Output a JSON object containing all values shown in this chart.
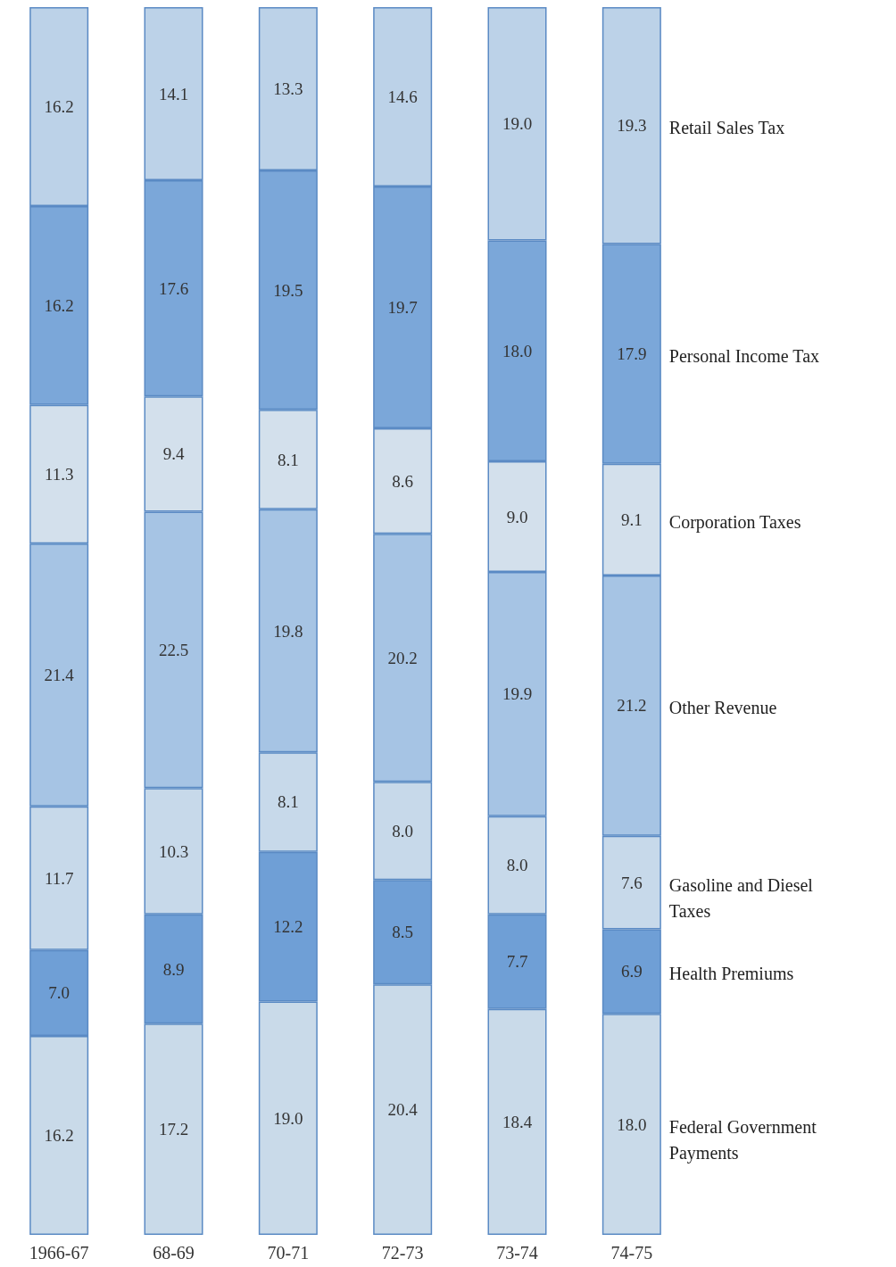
{
  "chart_data": {
    "type": "bar",
    "stacked": true,
    "grid": false,
    "legend": false,
    "tick_labels": "x",
    "categories": [
      "1966-67",
      "68-69",
      "70-71",
      "72-73",
      "73-74",
      "74-75"
    ],
    "series": [
      {
        "name": "Federal Government Payments",
        "color": "#c9dae9",
        "values": [
          16.2,
          17.2,
          19.0,
          20.4,
          18.4,
          18.0
        ],
        "value_labels": [
          "16.2",
          "17.2",
          "19.0",
          "20.4",
          "18.4",
          "18.0"
        ]
      },
      {
        "name": "Health Premiums",
        "color": "#6f9fd6",
        "values": [
          7.0,
          8.9,
          12.2,
          8.5,
          7.7,
          6.9
        ],
        "value_labels": [
          "7.0",
          "8.9",
          "12.2",
          "8.5",
          "7.7",
          "6.9"
        ]
      },
      {
        "name": "Gasoline and Diesel Taxes",
        "color": "#c7d9ea",
        "values": [
          11.7,
          10.3,
          8.1,
          8.0,
          8.0,
          7.6
        ],
        "value_labels": [
          "11.7",
          "10.3",
          "8.1",
          "8.0",
          "8.0",
          "7.6"
        ]
      },
      {
        "name": "Other Revenue",
        "color": "#a6c4e4",
        "values": [
          21.4,
          22.5,
          19.8,
          20.2,
          19.9,
          21.2
        ],
        "value_labels": [
          "21.4",
          "22.5",
          "19.8",
          "20.2",
          "19.9",
          "21.2"
        ]
      },
      {
        "name": "Corporation Taxes",
        "color": "#d3e0ec",
        "values": [
          11.3,
          9.4,
          8.1,
          8.6,
          9.0,
          9.1
        ],
        "value_labels": [
          "11.3",
          "9.4",
          "8.1",
          "8.6",
          "9.0",
          "9.1"
        ]
      },
      {
        "name": "Personal Income Tax",
        "color": "#7ba7d9",
        "values": [
          16.2,
          17.6,
          19.5,
          19.7,
          18.0,
          17.9
        ],
        "value_labels": [
          "16.2",
          "17.6",
          "19.5",
          "19.7",
          "18.0",
          "17.9"
        ]
      },
      {
        "name": "Retail Sales Tax",
        "color": "#bcd2e8",
        "values": [
          16.2,
          14.1,
          13.3,
          14.6,
          19.0,
          19.3
        ],
        "value_labels": [
          "16.2",
          "14.1",
          "13.3",
          "14.6",
          "19.0",
          "19.3"
        ]
      }
    ]
  }
}
